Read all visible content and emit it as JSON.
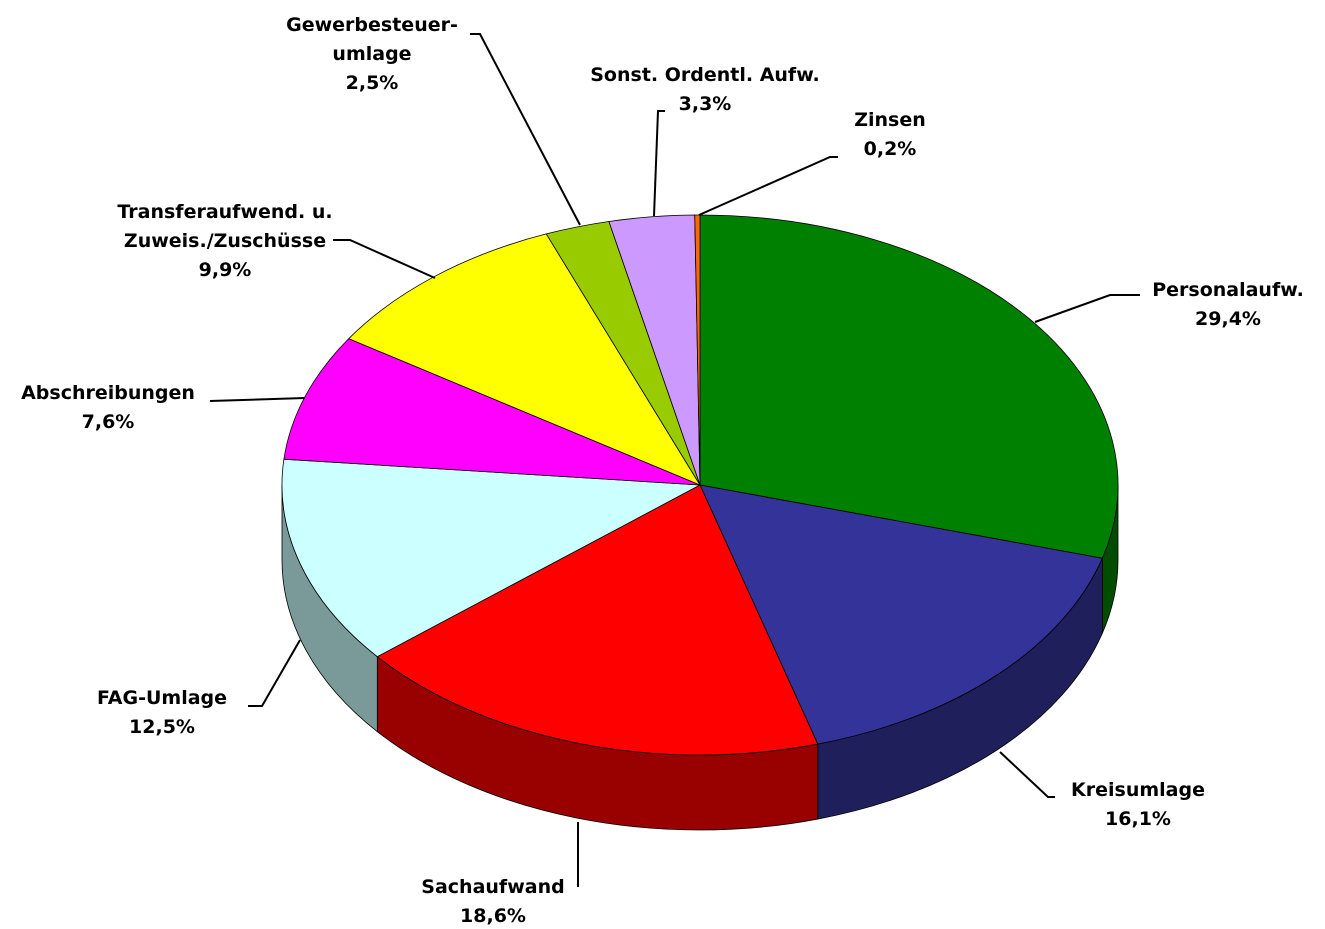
{
  "chart_data": {
    "type": "pie",
    "categories": [
      "Personalaufw.",
      "Kreisumlage",
      "Sachaufwand",
      "FAG-Umlage",
      "Abschreibungen",
      "Transferaufwend. u.\nZuweis./Zuschüsse",
      "Gewerbesteuer-\numlage",
      "Sonst. Ordentl. Aufw.",
      "Zinsen"
    ],
    "values": [
      29.4,
      16.1,
      18.6,
      12.5,
      7.6,
      9.9,
      2.5,
      3.3,
      0.2
    ],
    "value_labels": [
      "29,4%",
      "16,1%",
      "18,6%",
      "12,5%",
      "7,6%",
      "9,9%",
      "2,5%",
      "3,3%",
      "0,2%"
    ],
    "colors": [
      "#008000",
      "#333399",
      "#ff0000",
      "#ccffff",
      "#ff00ff",
      "#ffff00",
      "#99cc00",
      "#cc99ff",
      "#ff6600"
    ]
  }
}
